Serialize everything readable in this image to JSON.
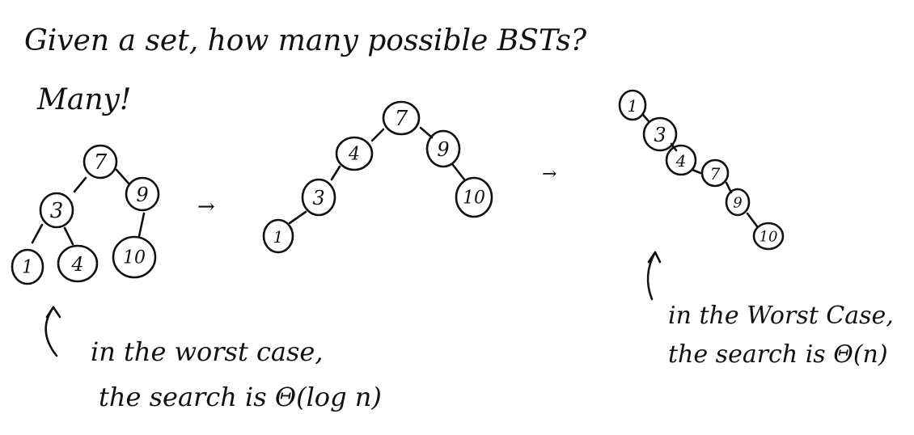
{
  "title_line1": "Given a set, how many possible BSTs?",
  "title_line2": "Many!",
  "trees": {
    "balanced": {
      "nodes": [
        "7",
        "3",
        "9",
        "1",
        "4",
        "10"
      ],
      "annotation_line1": "in the worst case,",
      "annotation_line2": "the search is Θ(log n)"
    },
    "medium": {
      "nodes": [
        "7",
        "4",
        "9",
        "3",
        "10",
        "1"
      ]
    },
    "chain": {
      "nodes": [
        "1",
        "3",
        "4",
        "7",
        "9",
        "10"
      ],
      "annotation_line1": "in the Worst Case,",
      "annotation_line2": "the search is Θ(n)"
    }
  },
  "arrow_symbol": "→",
  "up_arrow_symbol": "↑"
}
